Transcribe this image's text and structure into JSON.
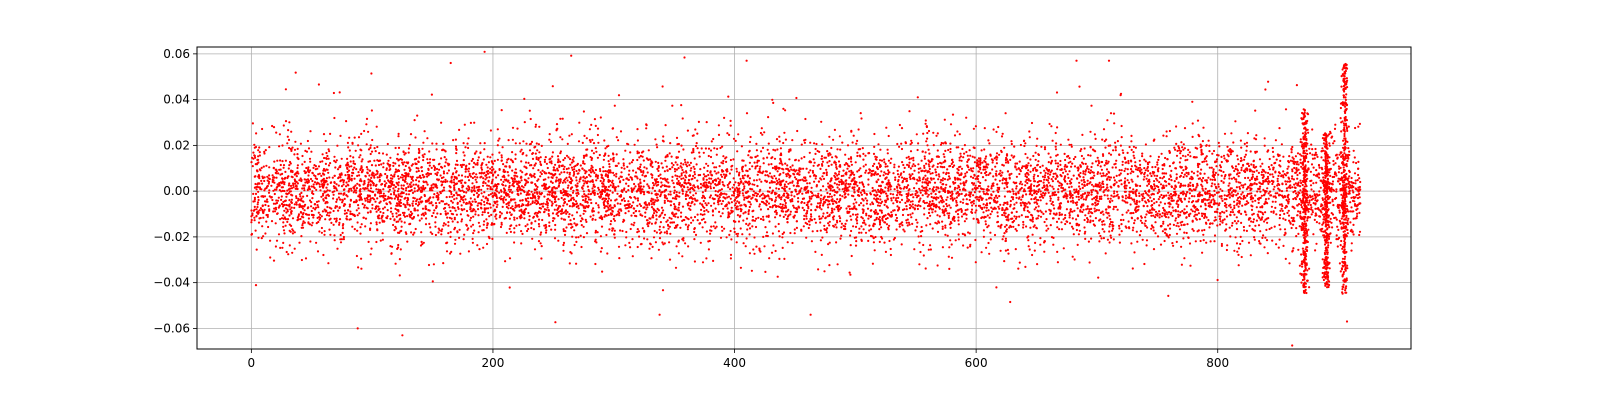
{
  "chart_data": {
    "type": "scatter",
    "title": "",
    "xlabel": "",
    "ylabel": "",
    "xlim": [
      -45,
      960
    ],
    "ylim": [
      -0.069,
      0.063
    ],
    "grid": true,
    "legend": "none",
    "marker_color": "#ff0000",
    "marker_radius_hint": "small",
    "x_ticks": [
      {
        "value": 0,
        "label": "0"
      },
      {
        "value": 200,
        "label": "200"
      },
      {
        "value": 400,
        "label": "400"
      },
      {
        "value": 600,
        "label": "600"
      },
      {
        "value": 800,
        "label": "800"
      }
    ],
    "y_ticks": [
      {
        "value": -0.06,
        "label": "−0.06"
      },
      {
        "value": -0.04,
        "label": "−0.04"
      },
      {
        "value": -0.02,
        "label": "−0.02"
      },
      {
        "value": 0.0,
        "label": "0.00"
      },
      {
        "value": 0.02,
        "label": "0.02"
      },
      {
        "value": 0.04,
        "label": "0.04"
      },
      {
        "value": 0.06,
        "label": "0.06"
      }
    ],
    "x_range_of_data": [
      0,
      918
    ],
    "dense_band": [
      -0.02,
      0.02
    ],
    "spread_sigma": 0.011,
    "point_count_estimate": 9000,
    "features": [
      {
        "x": 872,
        "y_low": -0.045,
        "y_high": 0.036,
        "kind": "spike"
      },
      {
        "x": 905,
        "y_low": -0.045,
        "y_high": 0.056,
        "kind": "spike"
      },
      {
        "x": 890,
        "y_low": -0.042,
        "y_high": 0.026,
        "kind": "spike"
      }
    ],
    "notable_points": [
      {
        "x": 165,
        "y": 0.056
      },
      {
        "x": 410,
        "y": 0.057
      },
      {
        "x": 710,
        "y": 0.057
      },
      {
        "x": 125,
        "y": -0.063
      },
      {
        "x": 88,
        "y": -0.06
      },
      {
        "x": 338,
        "y": -0.054
      },
      {
        "x": 463,
        "y": -0.054
      },
      {
        "x": 907,
        "y": -0.057
      }
    ]
  }
}
